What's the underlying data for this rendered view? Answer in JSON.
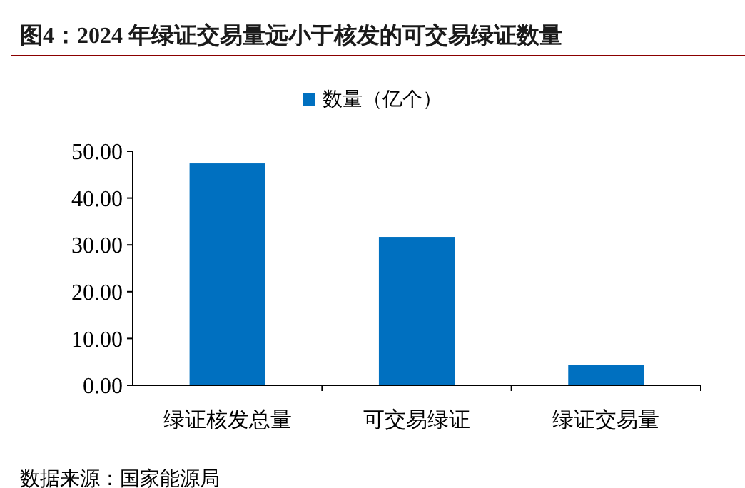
{
  "chart_data": {
    "type": "bar",
    "title": "图4：2024 年绿证交易量远小于核发的可交易绿证数量",
    "categories": [
      "绿证核发总量",
      "可交易绿证",
      "绿证交易量"
    ],
    "series": [
      {
        "name": "数量（亿个）",
        "color": "#0070c0",
        "values": [
          47.4,
          31.7,
          4.4
        ]
      }
    ],
    "ylim": [
      0,
      50
    ],
    "yticks": [
      {
        "value": 0,
        "label": "0.00"
      },
      {
        "value": 10,
        "label": "10.00"
      },
      {
        "value": 20,
        "label": "20.00"
      },
      {
        "value": 30,
        "label": "30.00"
      },
      {
        "value": 40,
        "label": "40.00"
      },
      {
        "value": 50,
        "label": "50.00"
      }
    ],
    "legend": "top",
    "grid": false,
    "annotations": [
      "数据来源：国家能源局"
    ]
  }
}
